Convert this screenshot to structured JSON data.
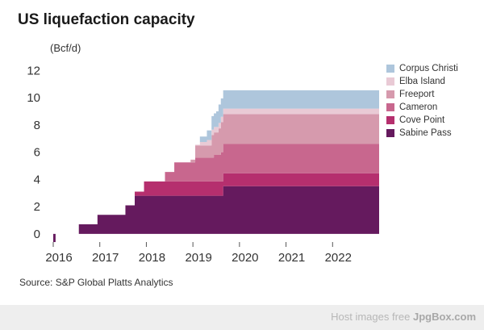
{
  "title": "US liquefaction capacity",
  "unit_label": "(Bcf/d)",
  "source": "Source: S&P Global Platts Analytics",
  "footer": {
    "prefix": "Host images free ",
    "brand": "JpgBox.com"
  },
  "chart_data": {
    "type": "area",
    "title": "US liquefaction capacity",
    "ylabel": "(Bcf/d)",
    "xlabel": "",
    "xlim": [
      2016,
      2023
    ],
    "ylim": [
      -0.6,
      12.2
    ],
    "yticks": [
      0,
      2,
      4,
      6,
      8,
      10,
      12
    ],
    "xticks": [
      2016,
      2017,
      2018,
      2019,
      2020,
      2021,
      2022
    ],
    "stacked": true,
    "step": true,
    "legend_position": "right",
    "grid": false,
    "series": [
      {
        "name": "Sabine Pass",
        "color": "#651a5e",
        "points": [
          [
            2016.0,
            -0.6
          ],
          [
            2016.05,
            -0.6
          ],
          [
            2016.05,
            0.0
          ],
          [
            2016.55,
            0.0
          ],
          [
            2016.55,
            0.7
          ],
          [
            2016.95,
            0.7
          ],
          [
            2016.95,
            1.4
          ],
          [
            2017.55,
            1.4
          ],
          [
            2017.55,
            2.1
          ],
          [
            2017.75,
            2.1
          ],
          [
            2017.75,
            2.8
          ],
          [
            2019.65,
            2.8
          ],
          [
            2019.65,
            3.5
          ],
          [
            2023.0,
            3.5
          ]
        ]
      },
      {
        "name": "Cove Point",
        "color": "#b52f6e",
        "points": [
          [
            2016.0,
            0
          ],
          [
            2017.75,
            0
          ],
          [
            2017.75,
            0.3
          ],
          [
            2017.95,
            0.3
          ],
          [
            2017.95,
            1.05
          ],
          [
            2019.65,
            1.05
          ],
          [
            2019.65,
            0.95
          ],
          [
            2023.0,
            0.95
          ]
        ]
      },
      {
        "name": "Cameron",
        "color": "#c8678e",
        "points": [
          [
            2016.0,
            0
          ],
          [
            2018.4,
            0
          ],
          [
            2018.4,
            0.7
          ],
          [
            2018.6,
            0.7
          ],
          [
            2018.6,
            1.4
          ],
          [
            2019.05,
            1.4
          ],
          [
            2019.05,
            1.75
          ],
          [
            2019.45,
            1.75
          ],
          [
            2019.45,
            1.95
          ],
          [
            2019.6,
            1.95
          ],
          [
            2019.6,
            2.15
          ],
          [
            2023.0,
            2.15
          ]
        ]
      },
      {
        "name": "Freeport",
        "color": "#d69aad",
        "points": [
          [
            2016.0,
            0
          ],
          [
            2018.95,
            0
          ],
          [
            2018.95,
            0.2
          ],
          [
            2019.05,
            0.2
          ],
          [
            2019.05,
            0.9
          ],
          [
            2019.4,
            0.9
          ],
          [
            2019.4,
            1.65
          ],
          [
            2019.55,
            1.65
          ],
          [
            2019.55,
            1.95
          ],
          [
            2019.6,
            1.95
          ],
          [
            2019.6,
            2.2
          ],
          [
            2023.0,
            2.2
          ]
        ]
      },
      {
        "name": "Elba Island",
        "color": "#e9cad5",
        "points": [
          [
            2016.0,
            0
          ],
          [
            2019.05,
            0
          ],
          [
            2019.05,
            0.05
          ],
          [
            2019.15,
            0.05
          ],
          [
            2019.15,
            0.25
          ],
          [
            2019.3,
            0.25
          ],
          [
            2019.3,
            0.4
          ],
          [
            2019.5,
            0.4
          ],
          [
            2023.0,
            0.4
          ]
        ]
      },
      {
        "name": "Corpus Christi",
        "color": "#aec6dc",
        "points": [
          [
            2016.0,
            0
          ],
          [
            2019.15,
            0
          ],
          [
            2019.15,
            0.4
          ],
          [
            2019.3,
            0.4
          ],
          [
            2019.3,
            0.7
          ],
          [
            2019.4,
            0.7
          ],
          [
            2019.4,
            1.0
          ],
          [
            2019.5,
            1.0
          ],
          [
            2019.5,
            1.15
          ],
          [
            2019.55,
            1.15
          ],
          [
            2019.55,
            1.35
          ],
          [
            2019.65,
            1.35
          ],
          [
            2023.0,
            1.35
          ]
        ]
      }
    ]
  }
}
